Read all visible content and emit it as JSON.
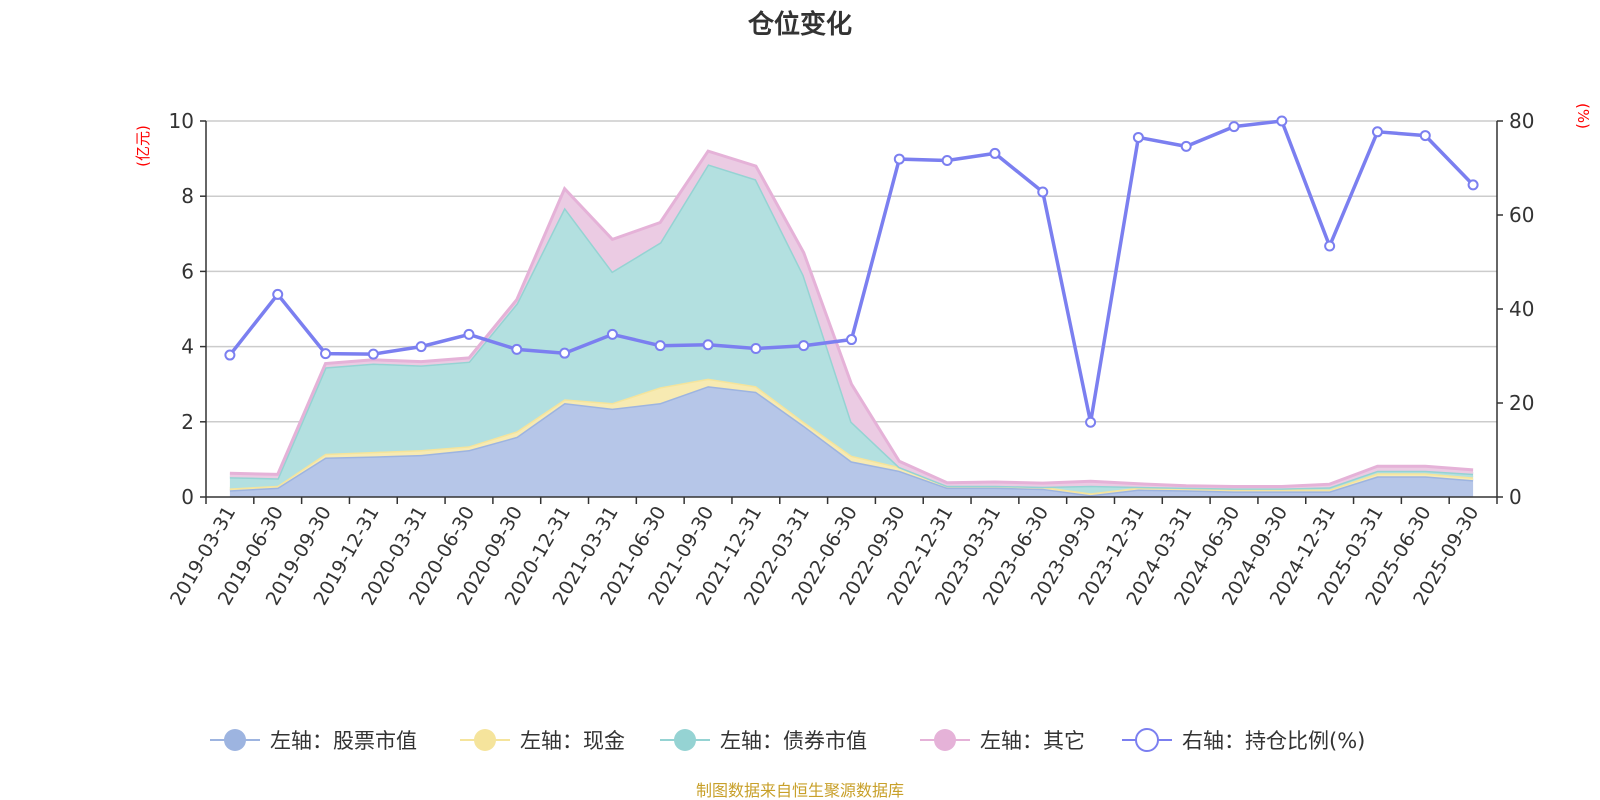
{
  "chart_data": {
    "type": "area",
    "title": "仓位变化",
    "source": "制图数据来自恒生聚源数据库",
    "left_unit": "(亿元)",
    "right_unit": "(%)",
    "left_axis": {
      "min": 0,
      "max": 10,
      "ticks": [
        "0",
        "2",
        "4",
        "6",
        "8",
        "10"
      ]
    },
    "right_axis": {
      "min": 0,
      "max": 80,
      "ticks": [
        "0",
        "20",
        "40",
        "60",
        "80"
      ]
    },
    "categories": [
      "2019-03-31",
      "2019-06-30",
      "2019-09-30",
      "2019-12-31",
      "2020-03-31",
      "2020-06-30",
      "2020-09-30",
      "2020-12-31",
      "2021-03-31",
      "2021-06-30",
      "2021-09-30",
      "2021-12-31",
      "2022-03-31",
      "2022-06-30",
      "2022-09-30",
      "2022-12-31",
      "2023-03-31",
      "2023-06-30",
      "2023-09-30",
      "2023-12-31",
      "2024-03-31",
      "2024-06-30",
      "2024-09-30",
      "2024-12-31",
      "2025-03-31",
      "2025-06-30",
      "2025-09-30"
    ],
    "series": [
      {
        "name": "左轴：股票市值",
        "axis": "left",
        "stack": true,
        "color": "#9db4e0",
        "fill": "#b6c6e8",
        "values": [
          0.18,
          0.25,
          1.05,
          1.08,
          1.12,
          1.25,
          1.6,
          2.5,
          2.35,
          2.5,
          2.95,
          2.8,
          1.9,
          0.95,
          0.7,
          0.25,
          0.25,
          0.22,
          0.05,
          0.2,
          0.18,
          0.15,
          0.15,
          0.15,
          0.55,
          0.55,
          0.45
        ]
      },
      {
        "name": "左轴：现金",
        "axis": "left",
        "stack": true,
        "color": "#f5e49c",
        "fill": "#f7eab2",
        "values": [
          0.05,
          0.05,
          0.1,
          0.12,
          0.13,
          0.1,
          0.15,
          0.1,
          0.15,
          0.42,
          0.2,
          0.15,
          0.1,
          0.15,
          0.1,
          0.05,
          0.05,
          0.05,
          0.05,
          0.05,
          0.05,
          0.05,
          0.05,
          0.05,
          0.08,
          0.08,
          0.07
        ]
      },
      {
        "name": "左轴：债券市值",
        "axis": "left",
        "stack": true,
        "color": "#95d3d3",
        "fill": "#b3e0e0",
        "values": [
          0.3,
          0.2,
          2.3,
          2.35,
          2.25,
          2.25,
          3.4,
          5.1,
          3.5,
          3.85,
          5.7,
          5.5,
          3.9,
          0.9,
          0.0,
          0.0,
          0.0,
          0.0,
          0.2,
          0.02,
          0.02,
          0.03,
          0.03,
          0.06,
          0.07,
          0.07,
          0.1
        ]
      },
      {
        "name": "左轴：其它",
        "axis": "left",
        "stack": true,
        "color": "#e5b2d8",
        "fill": "#ebcbe3",
        "values": [
          0.1,
          0.1,
          0.1,
          0.1,
          0.1,
          0.1,
          0.1,
          0.5,
          0.85,
          0.53,
          0.35,
          0.35,
          0.6,
          1.0,
          0.15,
          0.08,
          0.1,
          0.1,
          0.12,
          0.08,
          0.05,
          0.05,
          0.05,
          0.08,
          0.12,
          0.12,
          0.1
        ]
      },
      {
        "name": "右轴：持仓比例(%)",
        "axis": "right",
        "type": "line",
        "color": "#7b7ff0",
        "values": [
          30.2,
          43.1,
          30.5,
          30.4,
          32.0,
          34.6,
          31.4,
          30.6,
          34.6,
          32.2,
          32.4,
          31.6,
          32.2,
          33.5,
          71.9,
          71.6,
          73.1,
          64.9,
          15.9,
          76.5,
          74.6,
          78.8,
          80.0,
          53.4,
          77.7,
          76.9,
          66.4
        ]
      }
    ],
    "legend_position": "bottom",
    "grid": true
  }
}
